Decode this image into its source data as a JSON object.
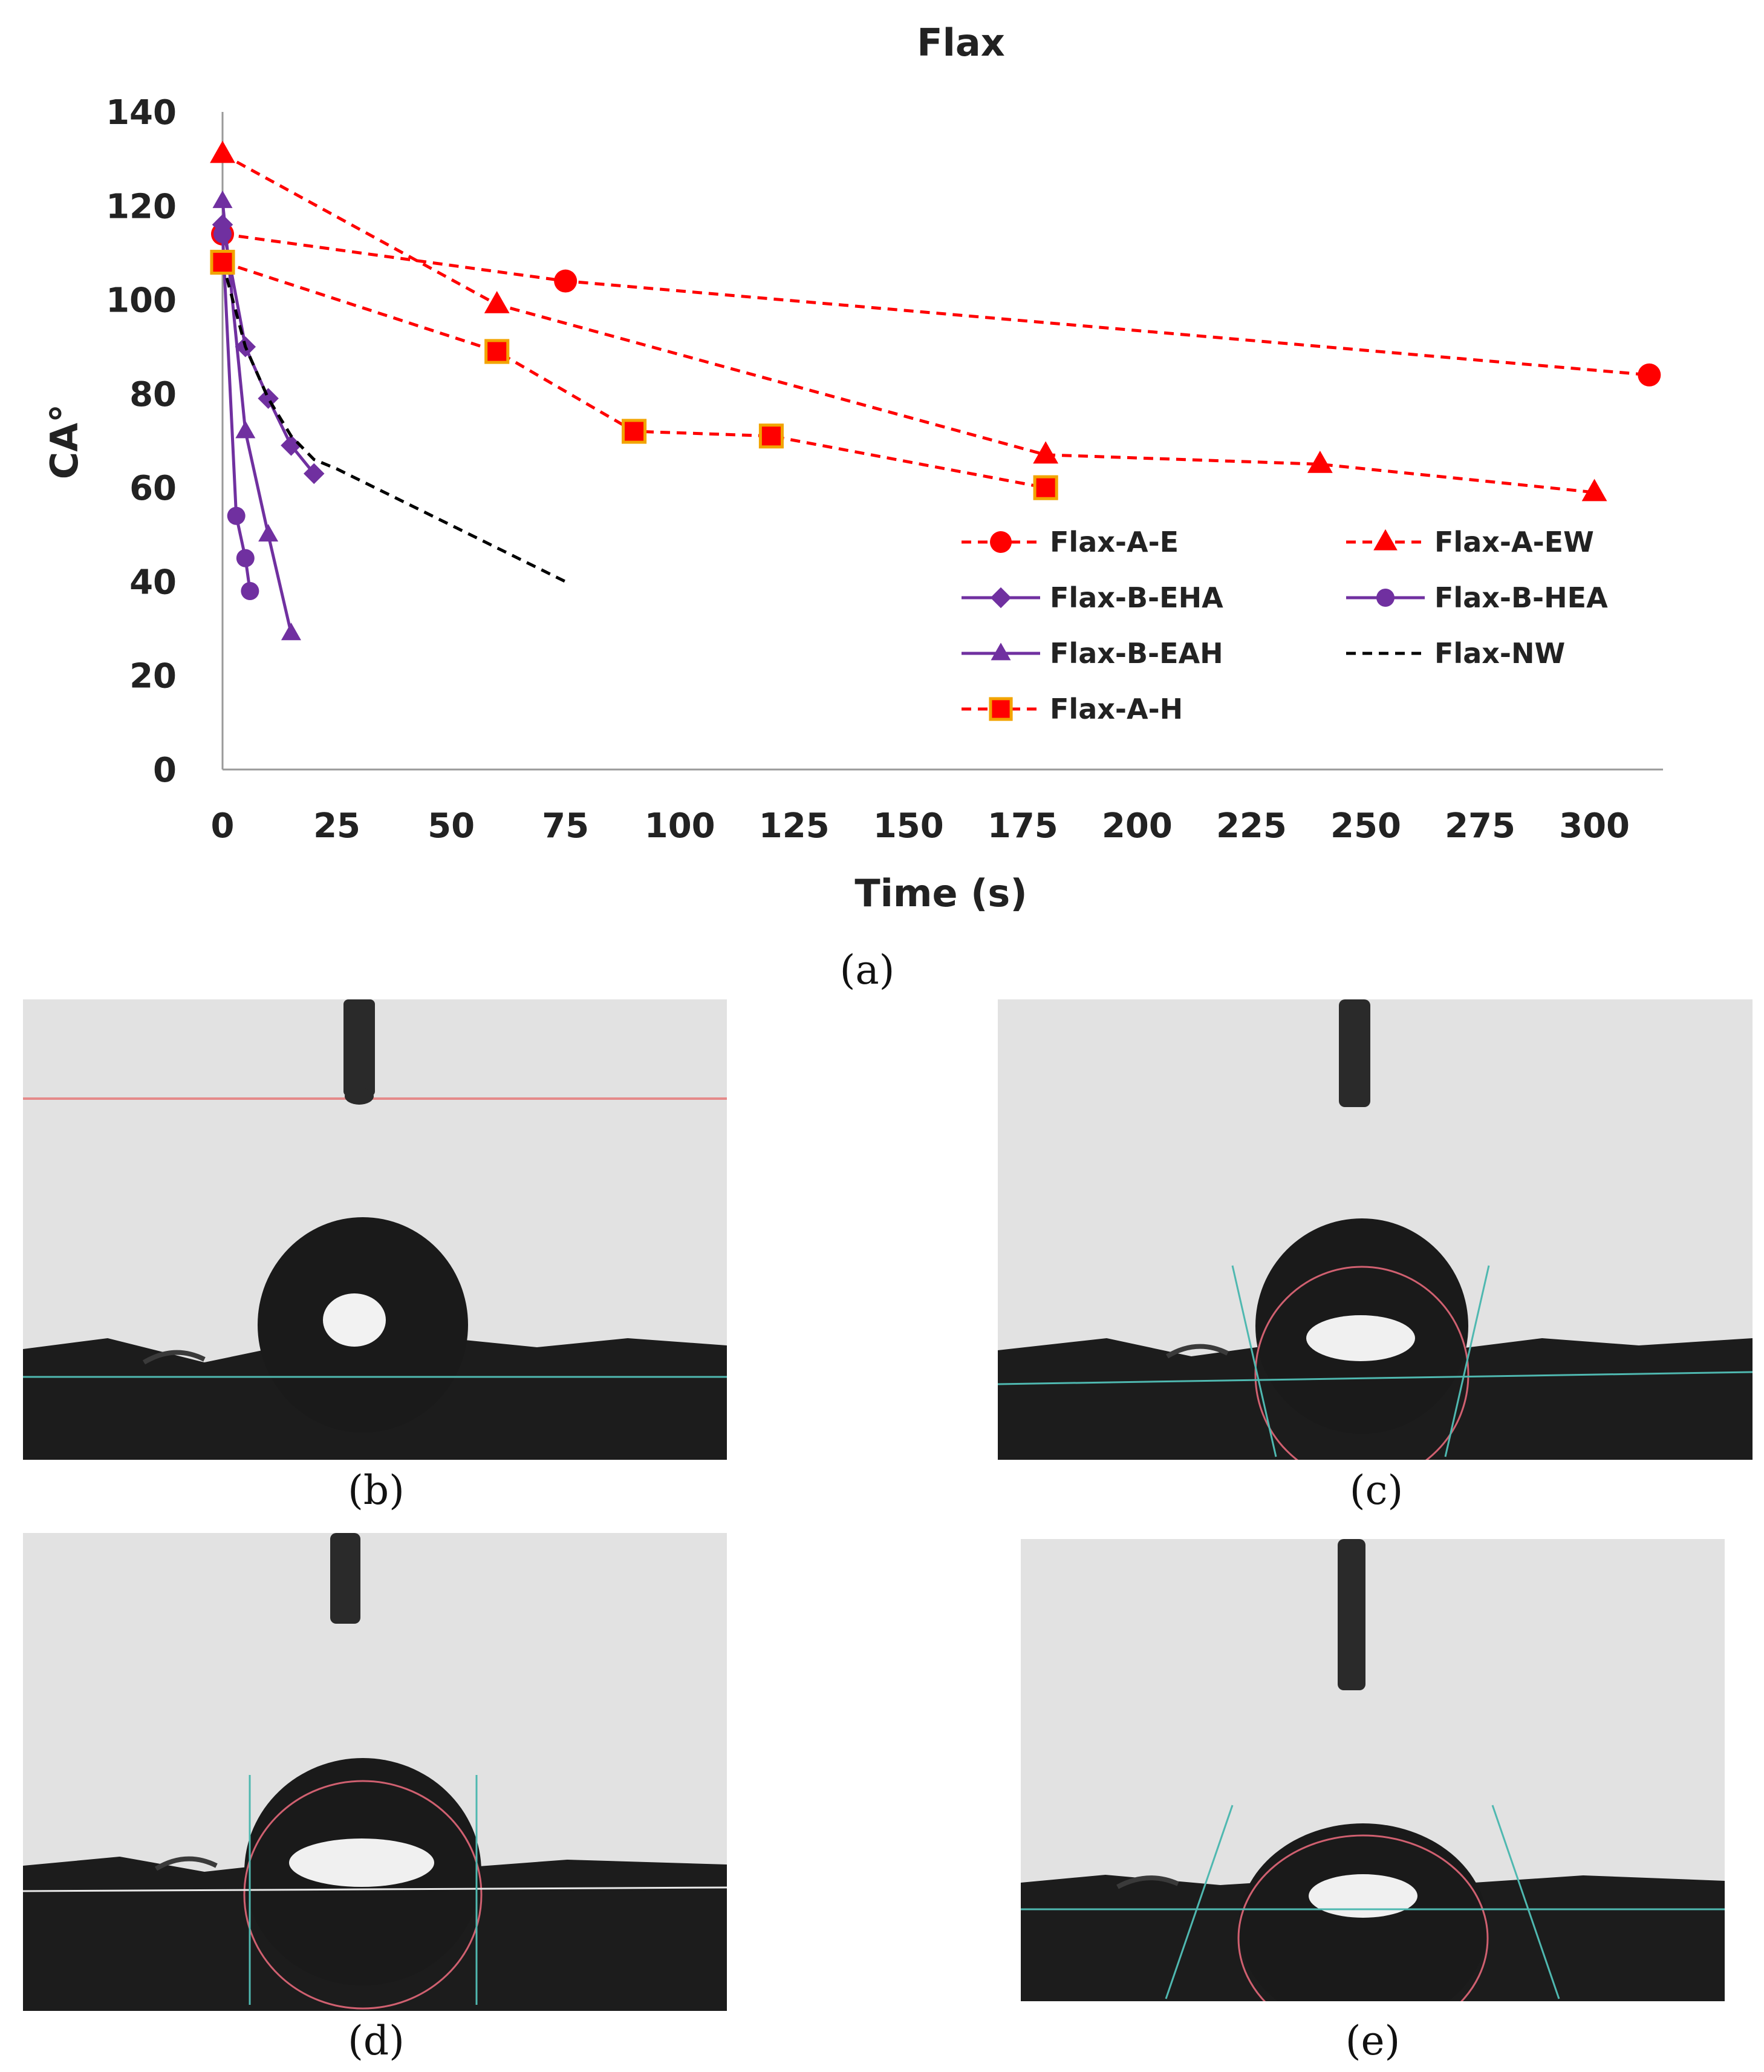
{
  "chart_data": {
    "type": "line",
    "title": "Flax",
    "xlabel": "Time (s)",
    "ylabel": "CA°",
    "xlim": [
      0,
      315
    ],
    "ylim": [
      0,
      140
    ],
    "x_ticks": [
      0,
      25,
      50,
      75,
      100,
      125,
      150,
      175,
      200,
      225,
      250,
      275,
      300
    ],
    "y_ticks": [
      0,
      20,
      40,
      60,
      80,
      100,
      120,
      140
    ],
    "grid": false,
    "legend_position": "bottom-right",
    "series": [
      {
        "name": "Flax-A-E",
        "color": "#ff0000",
        "dash": "dashed",
        "marker": "circle",
        "x": [
          0,
          75,
          312
        ],
        "y": [
          114,
          104,
          84
        ]
      },
      {
        "name": "Flax-A-EW",
        "color": "#ff0000",
        "dash": "dashed",
        "marker": "triangle",
        "x": [
          0,
          60,
          180,
          240,
          300
        ],
        "y": [
          131,
          99,
          67,
          65,
          59
        ]
      },
      {
        "name": "Flax-B-EHA",
        "color": "#7030a0",
        "dash": "solid",
        "marker": "diamond",
        "x": [
          0,
          5,
          10,
          15,
          20
        ],
        "y": [
          116,
          90,
          79,
          69,
          63
        ]
      },
      {
        "name": "Flax-B-HEA",
        "color": "#7030a0",
        "dash": "solid",
        "marker": "circle",
        "x": [
          0,
          3,
          5,
          6
        ],
        "y": [
          114,
          54,
          45,
          38
        ]
      },
      {
        "name": "Flax-B-EAH",
        "color": "#7030a0",
        "dash": "solid",
        "marker": "triangle",
        "x": [
          0,
          5,
          10,
          15
        ],
        "y": [
          121,
          72,
          50,
          29
        ]
      },
      {
        "name": "Flax-NW",
        "color": "#000000",
        "dash": "dashed",
        "marker": "none",
        "x": [
          0,
          5,
          10,
          15,
          20,
          25,
          75
        ],
        "y": [
          108,
          90,
          79,
          71,
          66,
          64,
          40
        ]
      },
      {
        "name": "Flax-A-H",
        "color": "#ff0000",
        "dash": "dashed",
        "marker": "square",
        "x": [
          0,
          60,
          90,
          120,
          180
        ],
        "y": [
          108,
          89,
          72,
          71,
          60
        ]
      }
    ]
  },
  "captions": {
    "a": "(a)",
    "b": "(b)",
    "c": "(c)",
    "d": "(d)",
    "e": "(e)"
  },
  "colors": {
    "background_photo": "#e2e2e2",
    "substrate": "#1c1c1c",
    "fit_line": "#4fb8b0",
    "fit_circle": "#d06070",
    "baseline_red": "#e58a8a"
  }
}
